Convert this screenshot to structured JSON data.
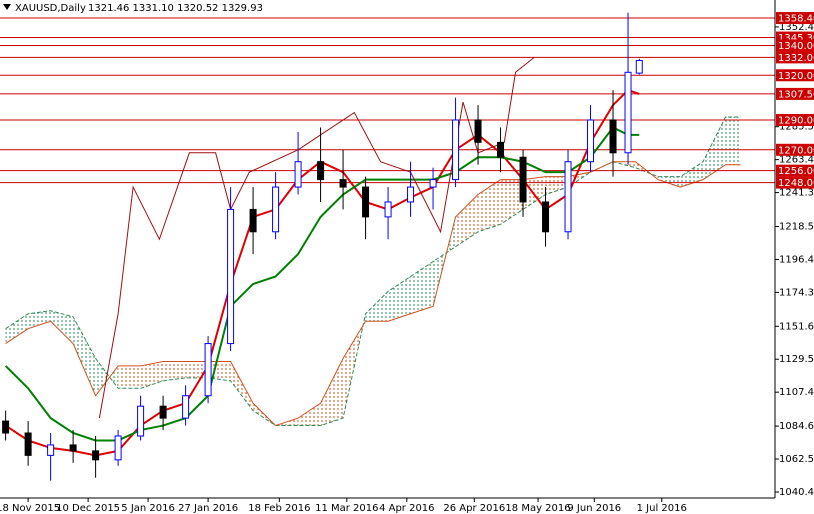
{
  "chart_data": {
    "type": "candlestick",
    "title": "XAUUSD,Daily",
    "subtitle": "1321.46 1331.10 1320.52 1329.93",
    "xlim": [
      -7.5,
      199.2
    ],
    "ylim": [
      1036.4,
      1370.5
    ],
    "xticks": [
      {
        "value": 0,
        "label": "18 Nov 2015"
      },
      {
        "value": 16,
        "label": "10 Dec 2015"
      },
      {
        "value": 32,
        "label": "5 Jan 2016"
      },
      {
        "value": 48,
        "label": "27 Jan 2016"
      },
      {
        "value": 67,
        "label": "18 Feb 2016"
      },
      {
        "value": 85,
        "label": "11 Mar 2016"
      },
      {
        "value": 101,
        "label": "4 Apr 2016"
      },
      {
        "value": 119,
        "label": "26 Apr 2016"
      },
      {
        "value": 136,
        "label": "18 May 2016"
      },
      {
        "value": 151,
        "label": "9 Jun 2016"
      },
      {
        "value": 169,
        "label": "1 Jul 2016"
      }
    ],
    "yticks": [
      1040.45,
      1062.55,
      1084.65,
      {
        "value": 1107.4,
        "label": "1107.40"
      },
      {
        "value": 1129.5,
        "label": "1129.50"
      },
      {
        "value": 1151.6,
        "label": "1151.60"
      },
      1174.35,
      1196.45,
      1218.55,
      {
        "value": 1241.3,
        "label": "1241.30"
      },
      {
        "value": 1263.4,
        "label": "1263.40"
      },
      {
        "value": 1285.5,
        "label": "1285.50"
      },
      1352.45
    ],
    "levels": [
      {
        "value": 1358.4,
        "label": "1358.40"
      },
      {
        "value": 1345.3,
        "label": "1345.30"
      },
      {
        "value": 1340,
        "label": "1340.00"
      },
      {
        "value": 1332,
        "label": "1332.00"
      },
      {
        "value": 1320,
        "label": "1320.00"
      },
      {
        "value": 1307.5,
        "label": "1307.50"
      },
      {
        "value": 1290,
        "label": "1290.00"
      },
      {
        "value": 1270,
        "label": "1270.00"
      },
      {
        "value": 1256,
        "label": "1256.00"
      },
      {
        "value": 1248,
        "label": "1248.00"
      }
    ],
    "level_color": "#cc0000",
    "up_color": "#0000ff",
    "down_color": "#000000",
    "x": [
      -6,
      0,
      6,
      12,
      18,
      24,
      30,
      36,
      42,
      48,
      54,
      60,
      66,
      72,
      78,
      84,
      90,
      96,
      102,
      108,
      114,
      120,
      126,
      132,
      138,
      144,
      150,
      156,
      160,
      163
    ],
    "open": [
      1088,
      1080,
      1065,
      1072,
      1068,
      1062,
      1078,
      1098,
      1090,
      1105,
      1140,
      1230,
      1215,
      1245,
      1262,
      1250,
      1245,
      1225,
      1235,
      1245,
      1250,
      1290,
      1275,
      1265,
      1235,
      1215,
      1262,
      1290,
      1268,
      1321.46
    ],
    "high": [
      1095,
      1088,
      1080,
      1082,
      1078,
      1082,
      1105,
      1105,
      1112,
      1145,
      1245,
      1245,
      1255,
      1282,
      1285,
      1270,
      1252,
      1245,
      1262,
      1258,
      1305,
      1300,
      1285,
      1270,
      1245,
      1270,
      1300,
      1310,
      1362,
      1331.1
    ],
    "low": [
      1075,
      1058,
      1048,
      1060,
      1050,
      1058,
      1075,
      1082,
      1085,
      1100,
      1135,
      1200,
      1210,
      1240,
      1235,
      1230,
      1210,
      1210,
      1225,
      1230,
      1245,
      1260,
      1255,
      1225,
      1205,
      1210,
      1255,
      1252,
      1260,
      1320.52
    ],
    "close": [
      1080,
      1065,
      1072,
      1068,
      1062,
      1078,
      1098,
      1090,
      1105,
      1140,
      1230,
      1215,
      1245,
      1262,
      1250,
      1245,
      1225,
      1235,
      1245,
      1250,
      1290,
      1275,
      1265,
      1235,
      1215,
      1262,
      1290,
      1268,
      1322,
      1329.93
    ],
    "series": [
      {
        "color": "#e00000",
        "width": 2,
        "x": [
          -6,
          0,
          6,
          12,
          18,
          24,
          30,
          36,
          42,
          48,
          54,
          60,
          66,
          72,
          78,
          84,
          90,
          96,
          102,
          108,
          114,
          120,
          126,
          132,
          138,
          144,
          150,
          156,
          160,
          163
        ],
        "values": [
          1085,
          1075,
          1070,
          1068,
          1065,
          1068,
          1085,
          1095,
          1100,
          1125,
          1180,
          1225,
          1230,
          1250,
          1262,
          1255,
          1235,
          1230,
          1238,
          1245,
          1270,
          1280,
          1268,
          1250,
          1230,
          1240,
          1275,
          1300,
          1310,
          1307.5
        ]
      },
      {
        "color": "#008000",
        "width": 2,
        "x": [
          -6,
          0,
          6,
          12,
          18,
          24,
          30,
          36,
          42,
          48,
          54,
          60,
          66,
          72,
          78,
          84,
          90,
          96,
          102,
          108,
          114,
          120,
          126,
          132,
          138,
          144,
          150,
          156,
          160,
          163
        ],
        "values": [
          1125,
          1110,
          1090,
          1080,
          1075,
          1075,
          1082,
          1085,
          1090,
          1105,
          1165,
          1180,
          1185,
          1200,
          1225,
          1240,
          1250,
          1250,
          1250,
          1250,
          1255,
          1265,
          1265,
          1262,
          1255,
          1255,
          1265,
          1285,
          1280,
          1280
        ]
      },
      {
        "color": "#a01010",
        "width": 1,
        "x": [
          19,
          24,
          28,
          35,
          43,
          50,
          54,
          59,
          72,
          87,
          94,
          102,
          110,
          116,
          120,
          127,
          130,
          135
        ],
        "values": [
          1090,
          1160,
          1245,
          1210,
          1268,
          1268,
          1230,
          1255,
          1270,
          1295,
          1262,
          1255,
          1215,
          1302,
          1268,
          1275,
          1322,
          1332
        ]
      }
    ],
    "cloud": {
      "x": [
        -6,
        0,
        6,
        12,
        18,
        24,
        30,
        36,
        42,
        48,
        54,
        60,
        66,
        72,
        78,
        84,
        90,
        96,
        102,
        108,
        114,
        120,
        126,
        132,
        138,
        144,
        150,
        156,
        162,
        168,
        174,
        180,
        186,
        190
      ],
      "span_a": [
        1150,
        1160,
        1162,
        1158,
        1130,
        1110,
        1110,
        1115,
        1117,
        1117,
        1115,
        1095,
        1085,
        1085,
        1085,
        1090,
        1160,
        1175,
        1185,
        1195,
        1205,
        1215,
        1220,
        1230,
        1240,
        1245,
        1255,
        1262,
        1258,
        1252,
        1252,
        1262,
        1292,
        1292
      ],
      "span_b": [
        1140,
        1150,
        1155,
        1140,
        1105,
        1125,
        1125,
        1128,
        1128,
        1128,
        1128,
        1100,
        1085,
        1090,
        1100,
        1130,
        1155,
        1155,
        1160,
        1165,
        1225,
        1240,
        1250,
        1250,
        1252,
        1252,
        1255,
        1262,
        1262,
        1250,
        1245,
        1250,
        1260,
        1260
      ],
      "up_color": "#2e8b57",
      "down_color": "#d2501e"
    }
  }
}
